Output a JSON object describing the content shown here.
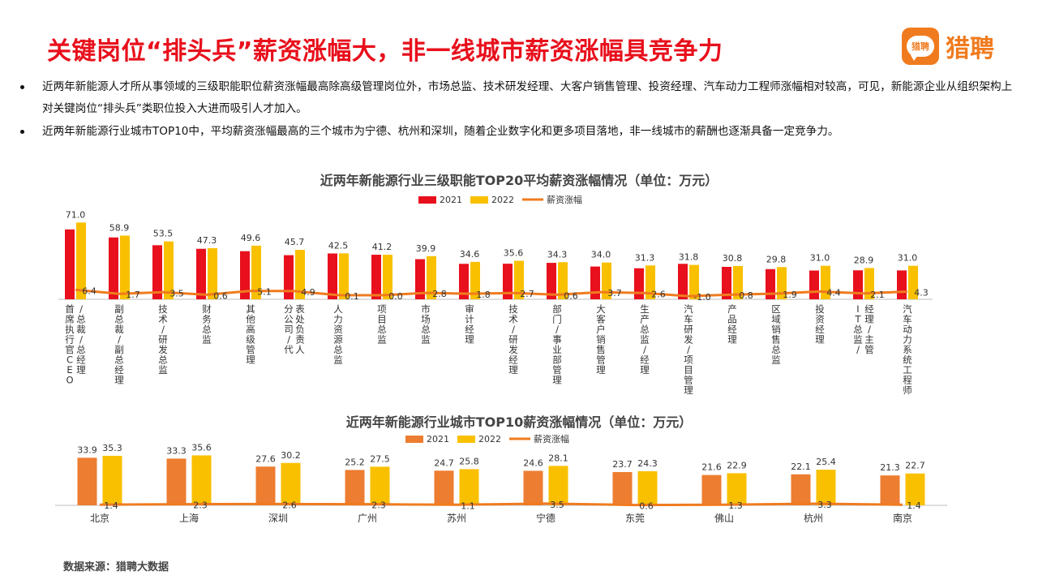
{
  "header": {
    "title": "关键岗位“排头兵”薪资涨幅大，非一线城市薪资涨幅具竞争力",
    "logo_badge": "猎聘",
    "logo_text": "猎聘"
  },
  "bullets": [
    "近两年新能源人才所从事领域的三级职能职位薪资涨幅最高除高级管理岗位外，市场总监、技术研发经理、大客户销售管理、投资经理、汽车动力工程师涨幅相对较高，可见，新能源企业从组织架构上对关键岗位“排头兵”类职位投入大进而吸引人才加入。",
    "近两年新能源行业城市TOP10中，平均薪资涨幅最高的三个城市为宁德、杭州和深圳，随着企业数字化和更多项目落地，非一线城市的薪酬也逐渐具备一定竞争力。"
  ],
  "chart_data": [
    {
      "type": "bar",
      "title": "近两年新能源行业三级职能TOP20平均薪资涨幅情况（单位：万元）",
      "categories": [
        "首席执行官CEO/总裁/总经理",
        "副总裁/副总经理",
        "技术/研发总监",
        "财务总监",
        "其他高级管理",
        "分公司/代表处负责人",
        "人力资源总监",
        "项目总监",
        "市场总监",
        "审计经理",
        "技术/研发经理",
        "部门/事业部管理",
        "大客户销售管理",
        "生产总监/经理",
        "汽车研发/项目管理",
        "产品经理",
        "区域销售总监",
        "投资经理",
        "IT总监/经理/主管",
        "汽车动力系统工程师"
      ],
      "series": [
        {
          "name": "2021",
          "kind": "bar",
          "color": "#e8101c",
          "values": [
            64.6,
            57.2,
            50.0,
            46.7,
            44.5,
            40.8,
            42.4,
            41.2,
            37.1,
            32.8,
            32.9,
            33.7,
            30.3,
            28.7,
            32.8,
            30.0,
            27.9,
            26.6,
            26.8,
            26.7
          ]
        },
        {
          "name": "2022",
          "kind": "bar",
          "color": "#f9c000",
          "values": [
            71.0,
            58.9,
            53.5,
            47.3,
            49.6,
            45.7,
            42.5,
            41.2,
            39.9,
            34.6,
            35.6,
            34.3,
            34.0,
            31.3,
            31.8,
            30.8,
            29.8,
            31.0,
            28.9,
            31.0
          ]
        },
        {
          "name": "薪资涨幅",
          "kind": "line",
          "color": "#f07b1e",
          "values": [
            6.4,
            1.7,
            3.5,
            0.6,
            5.1,
            4.9,
            0.1,
            0.0,
            2.8,
            1.8,
            2.7,
            0.6,
            3.7,
            2.6,
            -1.0,
            0.8,
            1.9,
            4.4,
            2.1,
            4.3
          ]
        }
      ],
      "labels_2022": [
        "71.0",
        "58.9",
        "53.5",
        "47.3",
        "49.6",
        "45.7",
        "42.5",
        "41.2",
        "39.9",
        "34.6",
        "35.6",
        "34.3",
        "34.0",
        "31.3",
        "31.8",
        "30.8",
        "29.8",
        "31.0",
        "28.9",
        "31.0"
      ],
      "labels_growth": [
        "6.4",
        "1.7",
        "3.5",
        "0.6",
        "5.1",
        "4.9",
        "0.1",
        "0.0",
        "2.8",
        "1.8",
        "2.7",
        "0.6",
        "3.7",
        "2.6",
        "-1.0",
        "0.8",
        "1.9",
        "4.4",
        "2.1",
        "4.3"
      ],
      "xlabel": "",
      "ylabel": "",
      "ylim": [
        0,
        75
      ],
      "grid": false,
      "legend": "top"
    },
    {
      "type": "bar",
      "title": "近两年新能源行业城市TOP10薪资涨幅情况（单位：万元）",
      "categories": [
        "北京",
        "上海",
        "深圳",
        "广州",
        "苏州",
        "宁德",
        "东莞",
        "佛山",
        "杭州",
        "南京"
      ],
      "series": [
        {
          "name": "2021",
          "kind": "bar",
          "color": "#ed7d31",
          "values": [
            33.9,
            33.3,
            27.6,
            25.2,
            24.7,
            24.6,
            23.7,
            21.6,
            22.1,
            21.3
          ]
        },
        {
          "name": "2022",
          "kind": "bar",
          "color": "#f9c000",
          "values": [
            35.3,
            35.6,
            30.2,
            27.5,
            25.8,
            28.1,
            24.3,
            22.9,
            25.4,
            22.7
          ]
        },
        {
          "name": "薪资涨幅",
          "kind": "line",
          "color": "#f07b1e",
          "values": [
            1.4,
            2.3,
            2.6,
            2.3,
            1.1,
            3.5,
            0.6,
            1.3,
            3.3,
            1.4
          ]
        }
      ],
      "labels_2021": [
        "33.9",
        "33.3",
        "27.6",
        "25.2",
        "24.7",
        "24.6",
        "23.7",
        "21.6",
        "22.1",
        "21.3"
      ],
      "labels_2022": [
        "35.3",
        "35.6",
        "30.2",
        "27.5",
        "25.8",
        "28.1",
        "24.3",
        "22.9",
        "25.4",
        "22.7"
      ],
      "labels_growth": [
        "1.4",
        "2.3",
        "2.6",
        "2.3",
        "1.1",
        "3.5",
        "0.6",
        "1.3",
        "3.3",
        "1.4"
      ],
      "xlabel": "",
      "ylabel": "",
      "ylim": [
        0,
        37
      ],
      "grid": false,
      "legend": "top"
    }
  ],
  "footer": {
    "source": "数据来源：猎聘大数据"
  }
}
